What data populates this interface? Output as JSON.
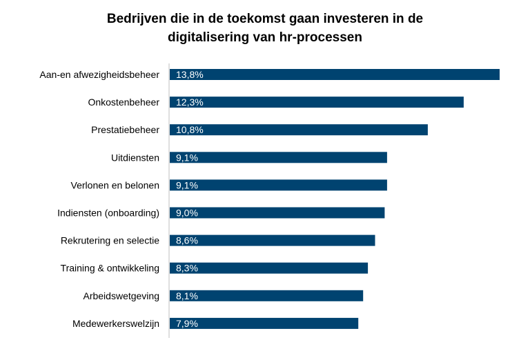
{
  "chart_data": {
    "type": "bar",
    "orientation": "horizontal",
    "title_lines": [
      "Bedrijven die in de toekomst gaan investeren in de",
      "digitalisering van hr-processen"
    ],
    "categories": [
      "Aan-en afwezigheidsbeheer",
      "Onkostenbeheer",
      "Prestatiebeheer",
      "Uitdiensten",
      "Verlonen en belonen",
      "Indiensten (onboarding)",
      "Rekrutering en selectie",
      "Training & ontwikkeling",
      "Arbeidswetgeving",
      "Medewerkerswelzijn"
    ],
    "values": [
      13.8,
      12.3,
      10.8,
      9.1,
      9.1,
      9.0,
      8.6,
      8.3,
      8.1,
      7.9
    ],
    "value_labels": [
      "13,8%",
      "12,3%",
      "10,8%",
      "9,1%",
      "9,1%",
      "9,0%",
      "8,6%",
      "8,3%",
      "8,1%",
      "7,9%"
    ],
    "unit": "%",
    "xlim": [
      0,
      13.8
    ],
    "grid": false,
    "legend": "none",
    "bar_color": "#004370",
    "axis_color": "#bfbfbf"
  }
}
